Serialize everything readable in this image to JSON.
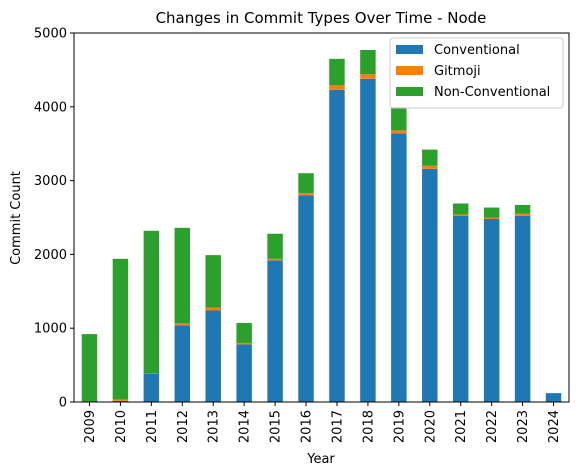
{
  "chart_data": {
    "type": "bar",
    "stacked": true,
    "title": "Changes in Commit Types Over Time - Node",
    "xlabel": "Year",
    "ylabel": "Commit Count",
    "ylim": [
      0,
      5000
    ],
    "yticks": [
      0,
      1000,
      2000,
      3000,
      4000,
      5000
    ],
    "categories": [
      "2009",
      "2010",
      "2011",
      "2012",
      "2013",
      "2014",
      "2015",
      "2016",
      "2017",
      "2018",
      "2019",
      "2020",
      "2021",
      "2022",
      "2023",
      "2024"
    ],
    "series": [
      {
        "name": "Conventional",
        "color": "#1f77b4",
        "values": [
          5,
          15,
          380,
          1040,
          1240,
          780,
          1920,
          2800,
          4230,
          4380,
          3640,
          3160,
          2520,
          2480,
          2520,
          120
        ]
      },
      {
        "name": "Gitmoji",
        "color": "#ff7f0e",
        "values": [
          0,
          20,
          5,
          25,
          40,
          20,
          20,
          30,
          60,
          60,
          40,
          40,
          20,
          15,
          30,
          0
        ]
      },
      {
        "name": "Non-Conventional",
        "color": "#2ca02c",
        "values": [
          915,
          1905,
          1935,
          1295,
          710,
          270,
          340,
          270,
          360,
          330,
          320,
          220,
          150,
          140,
          120,
          0
        ]
      }
    ],
    "legend_position": "upper right",
    "grid": false
  }
}
